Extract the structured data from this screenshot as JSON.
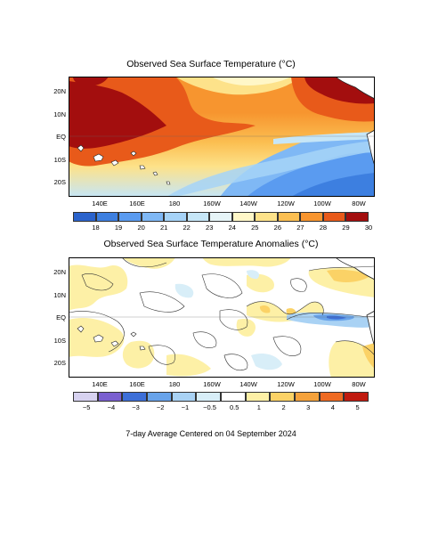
{
  "sst_map": {
    "title": "Observed Sea Surface Temperature (°C)",
    "lat_labels": [
      "20N",
      "10N",
      "EQ",
      "10S",
      "20S"
    ],
    "lon_labels": [
      "140E",
      "160E",
      "180",
      "160W",
      "140W",
      "120W",
      "100W",
      "80W"
    ],
    "colorbar": {
      "labels": [
        "18",
        "19",
        "20",
        "21",
        "22",
        "23",
        "24",
        "25",
        "26",
        "27",
        "28",
        "29",
        "30"
      ],
      "colors": [
        "#2b63cc",
        "#3d7fe0",
        "#5a9bf0",
        "#7fb8f5",
        "#a6d3f7",
        "#c6e6f7",
        "#e6f4f7",
        "#fff7c8",
        "#fde28a",
        "#fbbf52",
        "#f7952f",
        "#e85a1a",
        "#a30e0e"
      ]
    }
  },
  "anomaly_map": {
    "title": "Observed Sea Surface Temperature Anomalies (°C)",
    "lat_labels": [
      "20N",
      "10N",
      "EQ",
      "10S",
      "20S"
    ],
    "lon_labels": [
      "140E",
      "160E",
      "180",
      "160W",
      "140W",
      "120W",
      "100W",
      "80W"
    ],
    "colorbar": {
      "labels": [
        "−5",
        "−4",
        "−3",
        "−2",
        "−1",
        "−0.5",
        "0.5",
        "1",
        "2",
        "3",
        "4",
        "5"
      ],
      "colors": [
        "#d7d2f0",
        "#7a5fd0",
        "#3d6fd8",
        "#68a3ea",
        "#a9d2f4",
        "#d8eef8",
        "#ffffff",
        "#fdf0a6",
        "#fbd266",
        "#f5a23c",
        "#ee6a22",
        "#c01a0f"
      ]
    }
  },
  "footer": "7-day Average Centered on 04 September 2024"
}
